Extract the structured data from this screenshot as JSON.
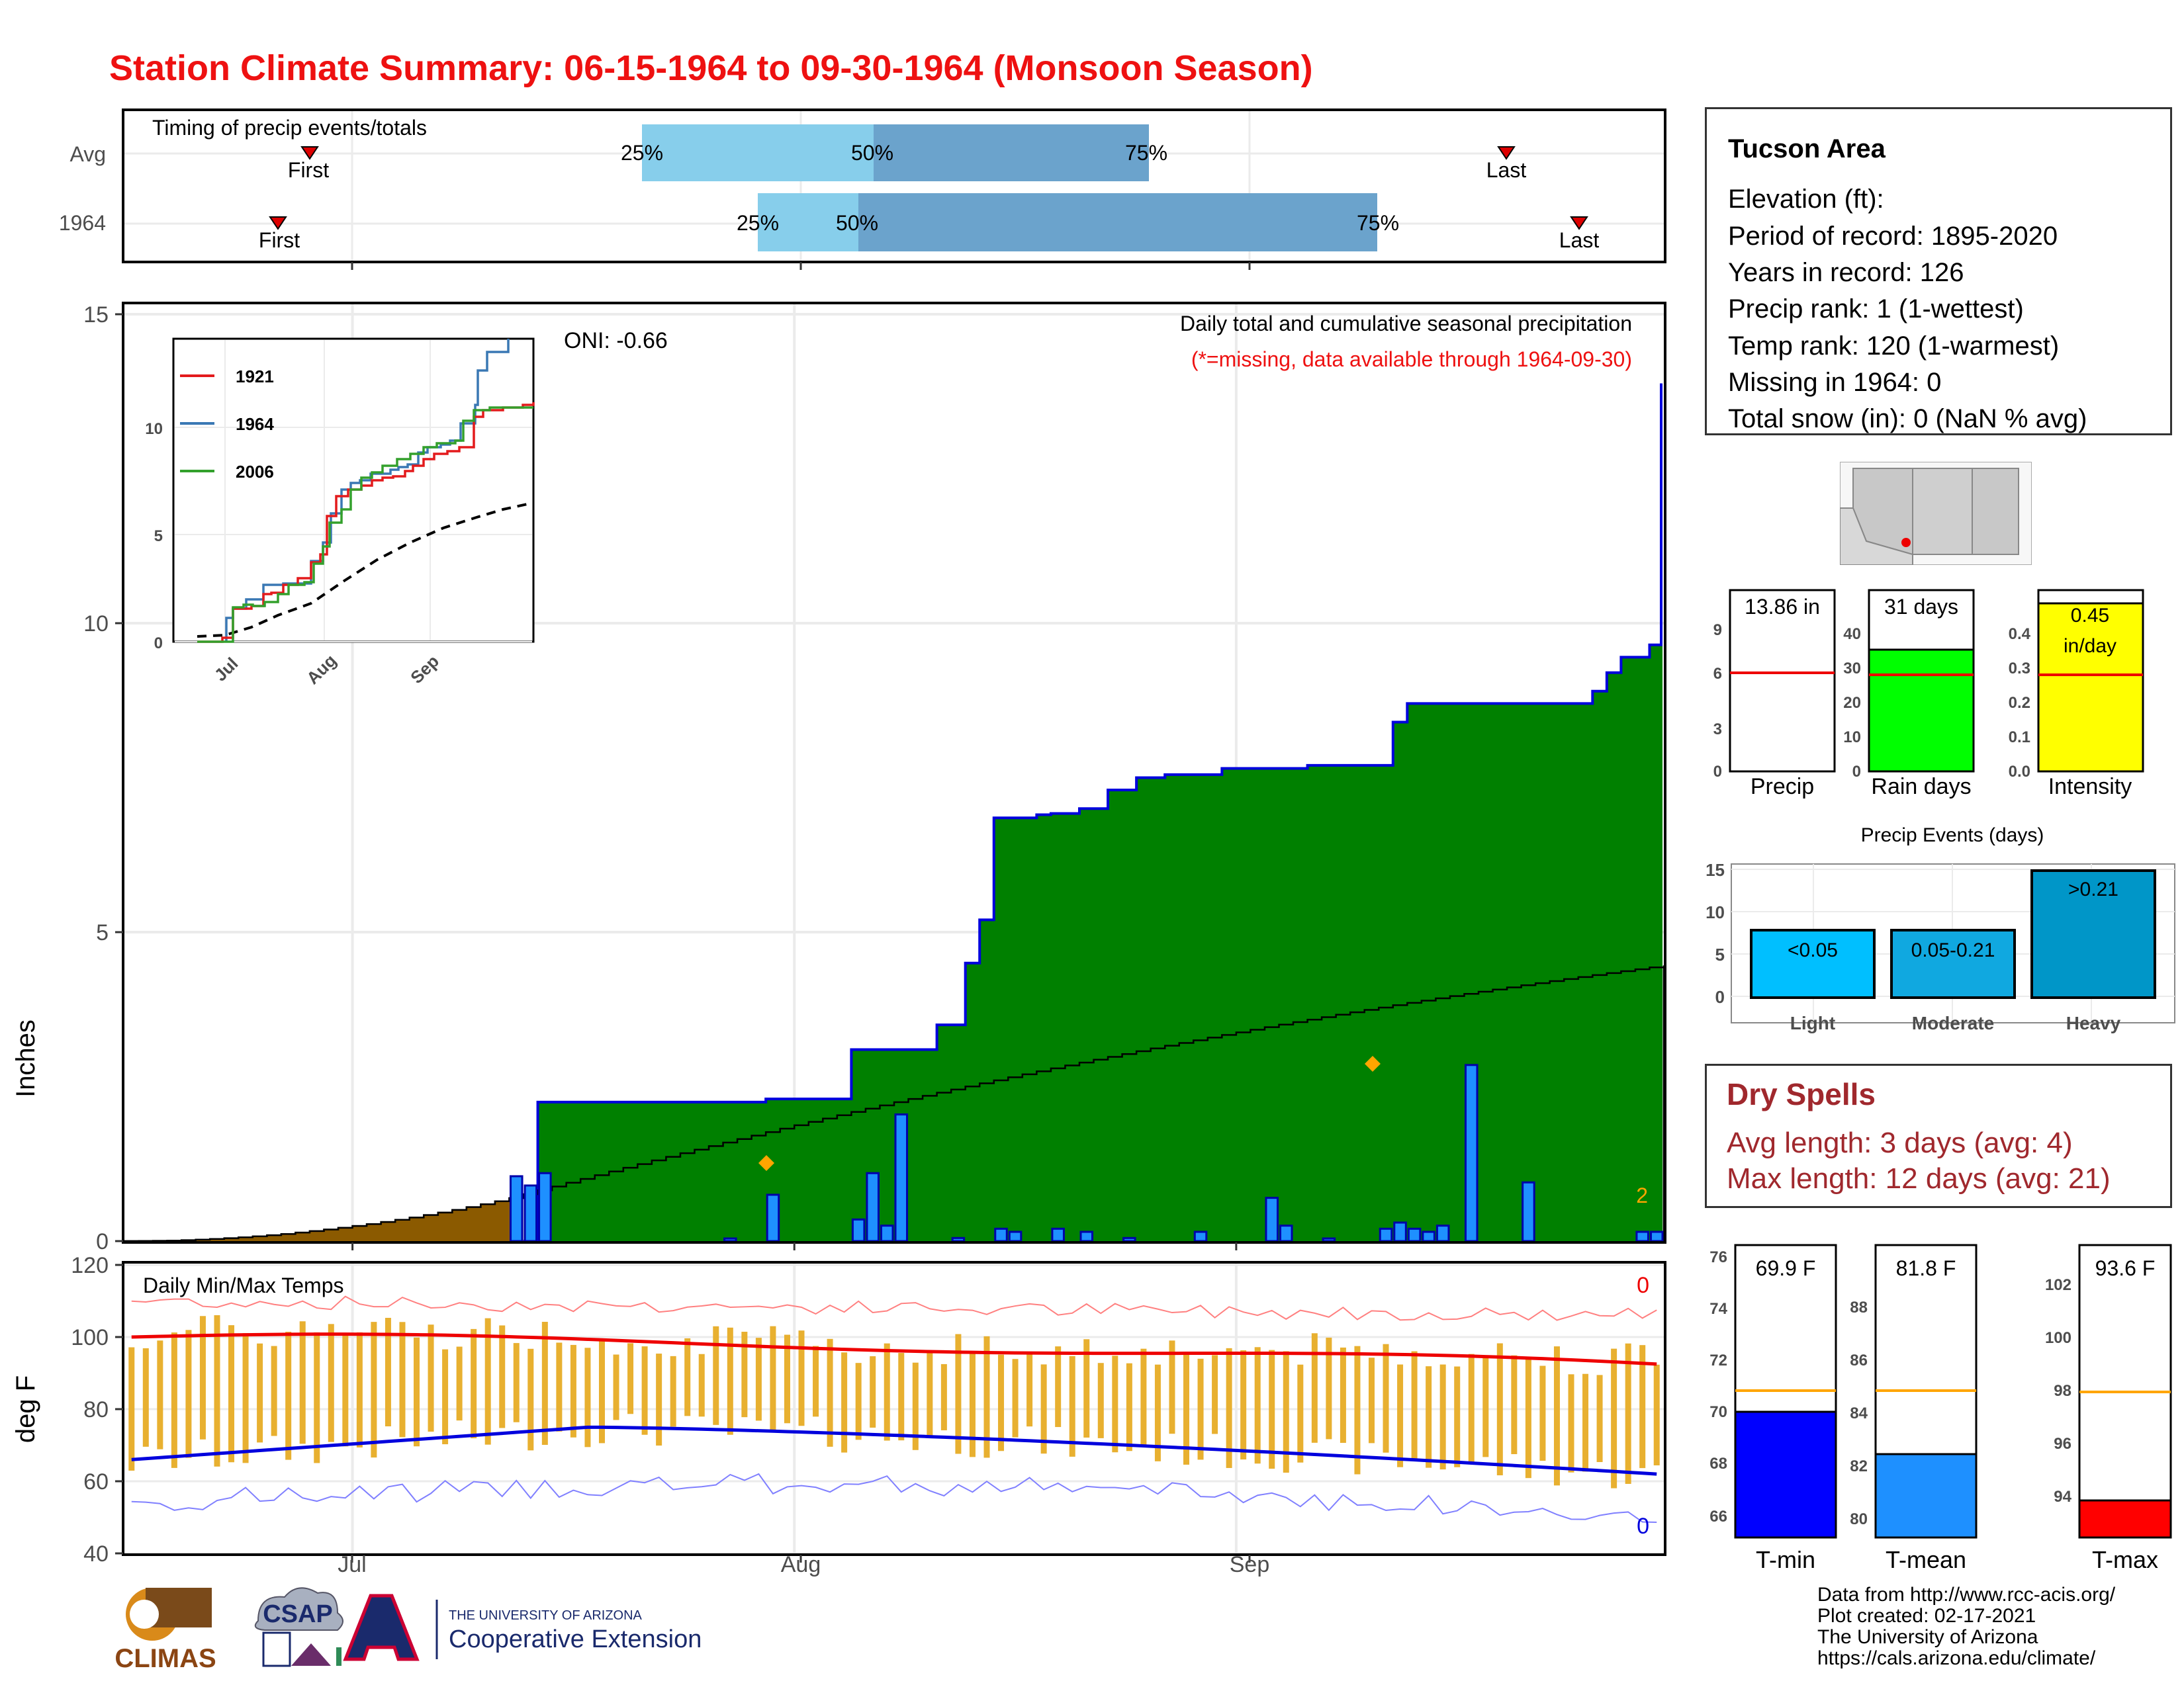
{
  "title": "Station Climate Summary: 06-15-1964 to 09-30-1964 (Monsoon Season)",
  "colors": {
    "title": "#ee1111",
    "cumulative_1964": "#008000",
    "cumulative_avg": "#e0e0e0",
    "daily_bar": "#1e90ff",
    "pre_season": "#8b5a00",
    "quartile_light": "#87ceeb",
    "quartile_dark": "#6ba3cc",
    "temp_bar": "#e8b030",
    "dry_spell_text": "#a0282d"
  },
  "timing": {
    "label": "Timing of precip events/totals",
    "rows": [
      {
        "name": "Avg",
        "first": "First",
        "last": "Last",
        "q25": "25%",
        "q50": "50%",
        "q75": "75%"
      },
      {
        "name": "1964",
        "first": "First",
        "last": "Last",
        "q25": "25%",
        "q50": "50%",
        "q75": "75%"
      }
    ]
  },
  "station": {
    "name": "Tucson Area",
    "lines": [
      "Elevation (ft):",
      "Period of record: 1895-2020",
      "Years in record: 126",
      "Precip rank: 1 (1-wettest)",
      "Temp rank: 120 (1-warmest)",
      "Missing in 1964: 0",
      "Total snow (in): 0 (NaN % avg)"
    ]
  },
  "main_chart": {
    "ylabel": "Inches",
    "annotation_title": "Daily total and cumulative seasonal precipitation",
    "annotation_note": "(*=missing, data available through 1964-09-30)",
    "oni": "ONI: -0.66",
    "corner_count": "2",
    "y_ticks": [
      "0",
      "5",
      "10",
      "15"
    ],
    "x_ticks": [
      "Jul",
      "Aug",
      "Sep"
    ]
  },
  "inset": {
    "legend": [
      "1921",
      "1964",
      "2006"
    ],
    "y_ticks": [
      "0",
      "5",
      "10"
    ],
    "x_ticks": [
      "Jul",
      "Aug",
      "Sep"
    ]
  },
  "temp_chart": {
    "ylabel": "deg F",
    "label": "Daily Min/Max Temps",
    "max_count": "0",
    "min_count": "0",
    "y_ticks": [
      "40",
      "60",
      "80",
      "100",
      "120"
    ],
    "x_ticks": [
      "Jul",
      "Aug",
      "Sep"
    ]
  },
  "summary_bars": [
    {
      "label": "Precip",
      "value_text": "13.86 in",
      "ticks": [
        "0",
        "3",
        "6",
        "9"
      ],
      "color": "#ffffff"
    },
    {
      "label": "Rain days",
      "value_text": "31 days",
      "ticks": [
        "0",
        "10",
        "20",
        "30",
        "40"
      ],
      "color": "#00ff00"
    },
    {
      "label": "Intensity",
      "value_text_1": "0.45",
      "value_text_2": "in/day",
      "ticks": [
        "0.0",
        "0.1",
        "0.2",
        "0.3",
        "0.4"
      ],
      "color": "#ffff00"
    }
  ],
  "precip_events": {
    "title": "Precip Events (days)",
    "y_ticks": [
      "0",
      "5",
      "10",
      "15"
    ],
    "bars": [
      {
        "category": "Light",
        "label": "<0.05",
        "value": 8,
        "color": "#00bfff"
      },
      {
        "category": "Moderate",
        "label": "0.05-0.21",
        "value": 8,
        "color": "#10a8e0"
      },
      {
        "category": "Heavy",
        "label": ">0.21",
        "value": 15,
        "color": "#0096c8"
      }
    ]
  },
  "dry_spells": {
    "title": "Dry Spells",
    "avg": "Avg length: 3 days (avg: 4)",
    "max": "Max length: 12 days (avg: 21)"
  },
  "temp_summary": [
    {
      "label": "T-min",
      "value_text": "69.9 F",
      "ticks": [
        "66",
        "68",
        "70",
        "72",
        "74",
        "76"
      ],
      "color": "#0000ff"
    },
    {
      "label": "T-mean",
      "value_text": "81.8 F",
      "ticks": [
        "80",
        "82",
        "84",
        "86",
        "88"
      ],
      "color": "#1e90ff"
    },
    {
      "label": "T-max",
      "value_text": "93.6 F",
      "ticks": [
        "94",
        "96",
        "98",
        "100",
        "102"
      ],
      "color": "#ff0000"
    }
  ],
  "credits": [
    "Data from http://www.rcc-acis.org/",
    "Plot created: 02-17-2021",
    "The University of Arizona",
    "https://cals.arizona.edu/climate/"
  ],
  "logos": {
    "climas": "CLIMAS",
    "csap": "CSAP",
    "ua_small": "THE UNIVERSITY OF ARIZONA",
    "ua_big": "Cooperative Extension"
  },
  "chart_data": [
    {
      "type": "area",
      "title": "Daily total and cumulative seasonal precipitation",
      "ylabel": "Inches",
      "ylim": [
        0,
        15
      ],
      "x_start": "1964-06-15",
      "x_end": "1964-09-30",
      "cumulative_1964_steps": [
        [
          "1964-07-13",
          0.0
        ],
        [
          "1964-07-14",
          2.25
        ],
        [
          "1964-07-30",
          2.3
        ],
        [
          "1964-08-05",
          3.1
        ],
        [
          "1964-08-11",
          3.5
        ],
        [
          "1964-08-13",
          4.5
        ],
        [
          "1964-08-14",
          5.2
        ],
        [
          "1964-08-15",
          6.85
        ],
        [
          "1964-08-18",
          6.9
        ],
        [
          "1964-08-19",
          6.92
        ],
        [
          "1964-08-21",
          7.0
        ],
        [
          "1964-08-23",
          7.3
        ],
        [
          "1964-08-25",
          7.5
        ],
        [
          "1964-08-27",
          7.55
        ],
        [
          "1964-08-31",
          7.65
        ],
        [
          "1964-09-06",
          7.7
        ],
        [
          "1964-09-08",
          7.7
        ],
        [
          "1964-09-12",
          8.4
        ],
        [
          "1964-09-13",
          8.7
        ],
        [
          "1964-09-26",
          8.9
        ],
        [
          "1964-09-27",
          9.2
        ],
        [
          "1964-09-28",
          9.45
        ],
        [
          "1964-09-30",
          9.65
        ],
        [
          "1964-09-30",
          13.86
        ]
      ],
      "daily_1964": [
        {
          "date": "1964-07-12",
          "value": 1.05
        },
        {
          "date": "1964-07-13",
          "value": 0.9
        },
        {
          "date": "1964-07-14",
          "value": 1.1
        },
        {
          "date": "1964-07-27",
          "value": 0.0
        },
        {
          "date": "1964-07-30",
          "value": 0.75
        },
        {
          "date": "1964-08-05",
          "value": 0.35
        },
        {
          "date": "1964-08-06",
          "value": 1.1
        },
        {
          "date": "1964-08-07",
          "value": 0.25
        },
        {
          "date": "1964-08-08",
          "value": 2.05
        },
        {
          "date": "1964-08-12",
          "value": 0.05
        },
        {
          "date": "1964-08-15",
          "value": 0.2
        },
        {
          "date": "1964-08-16",
          "value": 0.15
        },
        {
          "date": "1964-08-19",
          "value": 0.2
        },
        {
          "date": "1964-08-21",
          "value": 0.15
        },
        {
          "date": "1964-08-24",
          "value": 0.05
        },
        {
          "date": "1964-08-29",
          "value": 0.15
        },
        {
          "date": "1964-09-03",
          "value": 0.7
        },
        {
          "date": "1964-09-04",
          "value": 0.25
        },
        {
          "date": "1964-09-07",
          "value": 0.0
        },
        {
          "date": "1964-09-11",
          "value": 0.2
        },
        {
          "date": "1964-09-12",
          "value": 0.3
        },
        {
          "date": "1964-09-13",
          "value": 0.2
        },
        {
          "date": "1964-09-14",
          "value": 0.15
        },
        {
          "date": "1964-09-15",
          "value": 0.25
        },
        {
          "date": "1964-09-17",
          "value": 2.85
        },
        {
          "date": "1964-09-21",
          "value": 0.95
        },
        {
          "date": "1964-09-29",
          "value": 0.15
        },
        {
          "date": "1964-09-30",
          "value": 0.15
        }
      ],
      "cumulative_avg_end": 5.8,
      "oni": -0.66
    },
    {
      "type": "line",
      "title": "Daily Min/Max Temps",
      "ylabel": "deg F",
      "ylim": [
        40,
        120
      ],
      "avg_max_start": 100,
      "avg_max_end": 92,
      "avg_min_start": 66,
      "avg_min_peak": 75,
      "avg_min_end": 62
    },
    {
      "type": "bar",
      "title": "Precip Events (days)",
      "categories": [
        "Light",
        "Moderate",
        "Heavy"
      ],
      "values": [
        8,
        8,
        15
      ]
    },
    {
      "type": "bar",
      "categories": [
        "Precip",
        "Rain days",
        "Intensity"
      ],
      "values": [
        13.86,
        31,
        0.45
      ],
      "averages": [
        5.9,
        24,
        0.24
      ]
    },
    {
      "type": "bar",
      "categories": [
        "T-min",
        "T-mean",
        "T-max"
      ],
      "values": [
        69.9,
        81.8,
        93.6
      ],
      "averages": [
        70.8,
        84.2,
        97.8
      ]
    }
  ]
}
